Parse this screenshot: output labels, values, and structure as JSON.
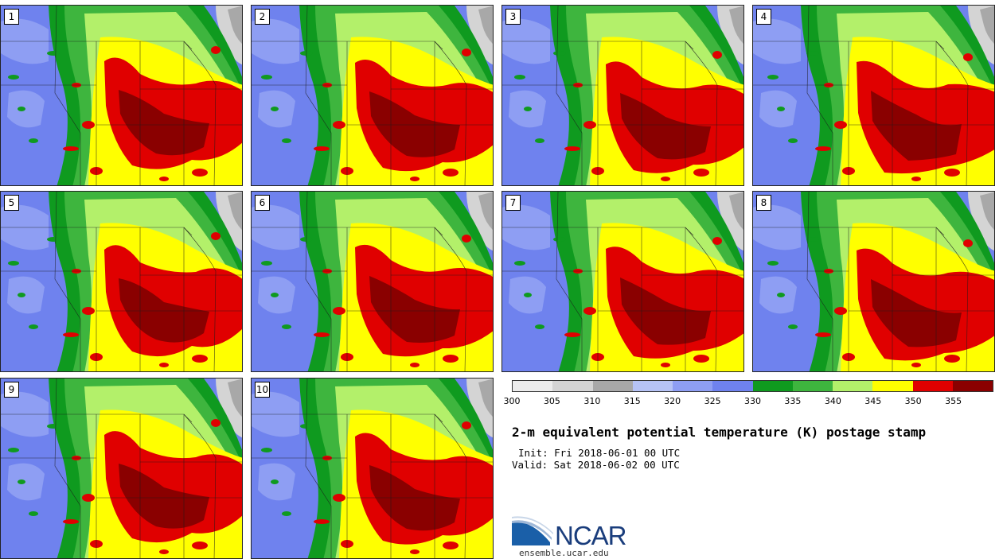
{
  "figure": {
    "title": "2-m equivalent potential temperature (K) postage stamp",
    "init": "Init: Fri 2018-06-01 00 UTC",
    "valid": "Valid: Sat 2018-06-02 00 UTC"
  },
  "members": [
    "1",
    "2",
    "3",
    "4",
    "5",
    "6",
    "7",
    "8",
    "9",
    "10"
  ],
  "colorbar": {
    "ticks": [
      "300",
      "305",
      "310",
      "315",
      "320",
      "325",
      "330",
      "335",
      "340",
      "345",
      "350",
      "355"
    ],
    "colors": [
      "#ececec",
      "#d4d4d4",
      "#a8a8a8",
      "#b6c3f5",
      "#8e9ef3",
      "#6f82ee",
      "#0f9a1f",
      "#3eb53e",
      "#b3f06a",
      "#ffff00",
      "#e00000",
      "#8a0000"
    ]
  },
  "branding": {
    "logo_text": "NCAR",
    "url": "ensemble.ucar.edu"
  }
}
